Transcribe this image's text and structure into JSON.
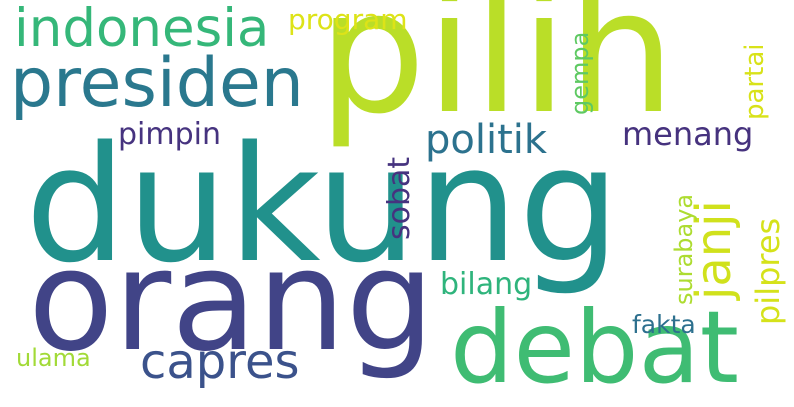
{
  "words": {
    "dukung": "dukung",
    "pilih": "pilih",
    "orang": "orang",
    "debat": "debat",
    "presiden": "presiden",
    "indonesia": "indonesia",
    "capres": "capres",
    "politik": "politik",
    "menang": "menang",
    "pimpin": "pimpin",
    "bilang": "bilang",
    "program": "program",
    "ulama": "ulama",
    "fakta": "fakta",
    "janji": "janji",
    "sobat": "sobat",
    "gempa": "gempa",
    "partai": "partai",
    "surabaya": "surabaya",
    "pilpres": "pilpres"
  },
  "colors": {
    "background": "#ffffff",
    "teal": "#21918c",
    "lime": "#bade28",
    "indigo": "#414487",
    "green": "#3fbc73",
    "yellow": "#d5e21a"
  }
}
